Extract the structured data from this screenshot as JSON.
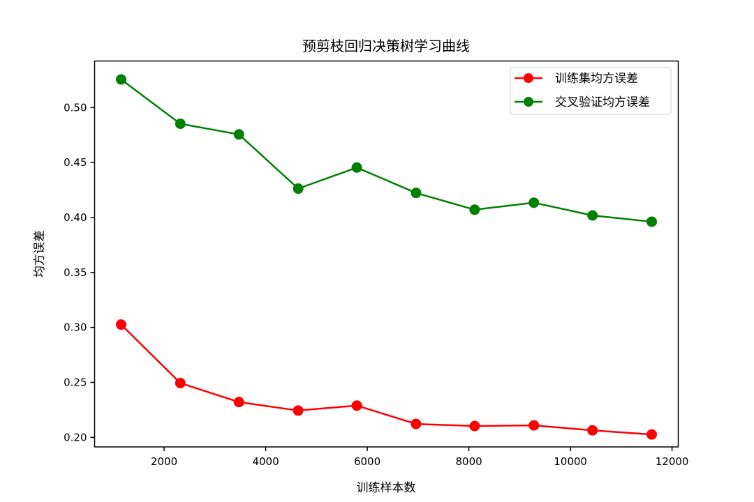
{
  "chart_data": {
    "type": "line",
    "title": "预剪枝回归决策树学习曲线",
    "xlabel": "训练样本数",
    "ylabel": "均方误差",
    "x": [
      1154,
      2320,
      3474,
      4640,
      5794,
      6960,
      8114,
      9280,
      10434,
      11600
    ],
    "series": [
      {
        "name": "训练集均方误差",
        "color": "#ff0000",
        "marker": "circle",
        "values": [
          0.3026,
          0.2494,
          0.2321,
          0.2244,
          0.2289,
          0.2122,
          0.2103,
          0.2109,
          0.2064,
          0.2026
        ]
      },
      {
        "name": "交叉验证均方误差",
        "color": "#008000",
        "marker": "circle",
        "values": [
          0.5256,
          0.4853,
          0.4756,
          0.4263,
          0.4455,
          0.4224,
          0.4071,
          0.4135,
          0.4019,
          0.3962
        ]
      }
    ],
    "xticks": [
      2000,
      4000,
      6000,
      8000,
      10000,
      12000
    ],
    "xtick_labels": [
      "2000",
      "4000",
      "6000",
      "8000",
      "10000",
      "12000"
    ],
    "yticks": [
      0.2,
      0.25,
      0.3,
      0.35,
      0.4,
      0.45,
      0.5
    ],
    "ytick_labels": [
      "0.20",
      "0.25",
      "0.30",
      "0.35",
      "0.40",
      "0.45",
      "0.50"
    ],
    "xlim": [
      632,
      12122
    ],
    "ylim": [
      0.1913,
      0.5424
    ],
    "grid": false,
    "legend_position": "upper right"
  }
}
